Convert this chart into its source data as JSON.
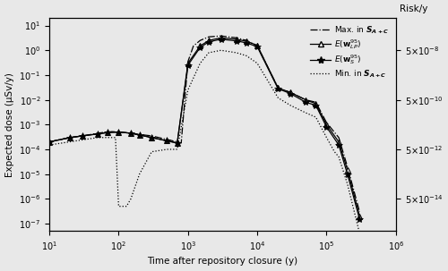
{
  "title": "",
  "xlabel": "Time after repository closure (y)",
  "ylabel": "Expected dose (μSv/y)",
  "ylabel_right": "Risk/y",
  "xlim": [
    10,
    1000000
  ],
  "ylim": [
    5e-08,
    20
  ],
  "background_color": "#e8e8e8",
  "plot_bg_color": "#e8e8e8",
  "dose_to_risk_factor": 5e-08,
  "x_max": [
    10,
    20,
    30,
    40,
    50,
    60,
    70,
    80,
    100,
    150,
    200,
    300,
    500,
    700,
    800,
    1000,
    1200,
    1500,
    2000,
    3000,
    5000,
    7000,
    10000,
    20000,
    30000,
    50000,
    70000,
    100000,
    150000,
    200000,
    300000
  ],
  "y_max": [
    0.0002,
    0.0003,
    0.00035,
    0.0004,
    0.00045,
    0.00048,
    0.0005,
    0.00052,
    0.0005,
    0.00045,
    0.0004,
    0.00035,
    0.00025,
    0.0002,
    0.00018,
    0.35,
    1.5,
    2.5,
    3.5,
    3.8,
    3.2,
    2.5,
    1.5,
    0.03,
    0.02,
    0.01,
    0.008,
    0.0012,
    0.0003,
    2e-05,
    3e-07
  ],
  "x_lp": [
    10,
    20,
    30,
    50,
    70,
    100,
    150,
    200,
    300,
    500,
    700,
    1000,
    1500,
    2000,
    3000,
    5000,
    7000,
    10000,
    20000,
    30000,
    50000,
    70000,
    100000,
    150000,
    200000,
    300000
  ],
  "y_lp": [
    0.0002,
    0.0003,
    0.00035,
    0.00042,
    0.00048,
    0.0005,
    0.00045,
    0.00038,
    0.0003,
    0.00022,
    0.00018,
    0.3,
    1.5,
    2.5,
    3.2,
    2.8,
    2.3,
    1.6,
    0.03,
    0.02,
    0.01,
    0.007,
    0.001,
    0.0002,
    1.5e-05,
    2e-07
  ],
  "x_s": [
    10,
    20,
    30,
    50,
    70,
    100,
    150,
    200,
    300,
    500,
    700,
    1000,
    1500,
    2000,
    3000,
    5000,
    7000,
    10000,
    20000,
    30000,
    50000,
    70000,
    100000,
    150000,
    200000,
    300000
  ],
  "y_s": [
    0.0002,
    0.0003,
    0.00035,
    0.00042,
    0.00048,
    0.0005,
    0.00045,
    0.00038,
    0.0003,
    0.00022,
    0.00018,
    0.25,
    1.3,
    2.2,
    2.8,
    2.4,
    2.0,
    1.4,
    0.028,
    0.018,
    0.008,
    0.006,
    0.0008,
    0.00015,
    1e-05,
    1.5e-07
  ],
  "x_min": [
    10,
    50,
    90,
    100,
    110,
    130,
    150,
    200,
    300,
    500,
    700,
    1000,
    1500,
    2000,
    3000,
    5000,
    7000,
    10000,
    20000,
    30000,
    50000,
    70000,
    100000,
    130000,
    150000,
    200000,
    300000
  ],
  "y_min": [
    0.00015,
    0.0003,
    0.0003,
    5e-07,
    5e-07,
    5e-07,
    1e-06,
    1e-05,
    8e-05,
    0.0001,
    0.0001,
    0.025,
    0.3,
    0.8,
    1.0,
    0.8,
    0.6,
    0.3,
    0.012,
    0.006,
    0.003,
    0.002,
    0.0003,
    8e-05,
    5e-05,
    4e-06,
    4e-08
  ],
  "right_tick_labels": [
    "5×10⁻¹⁴",
    "5×10⁻¹²",
    "5×10⁻¹⁰",
    "5×10⁻⁸"
  ]
}
